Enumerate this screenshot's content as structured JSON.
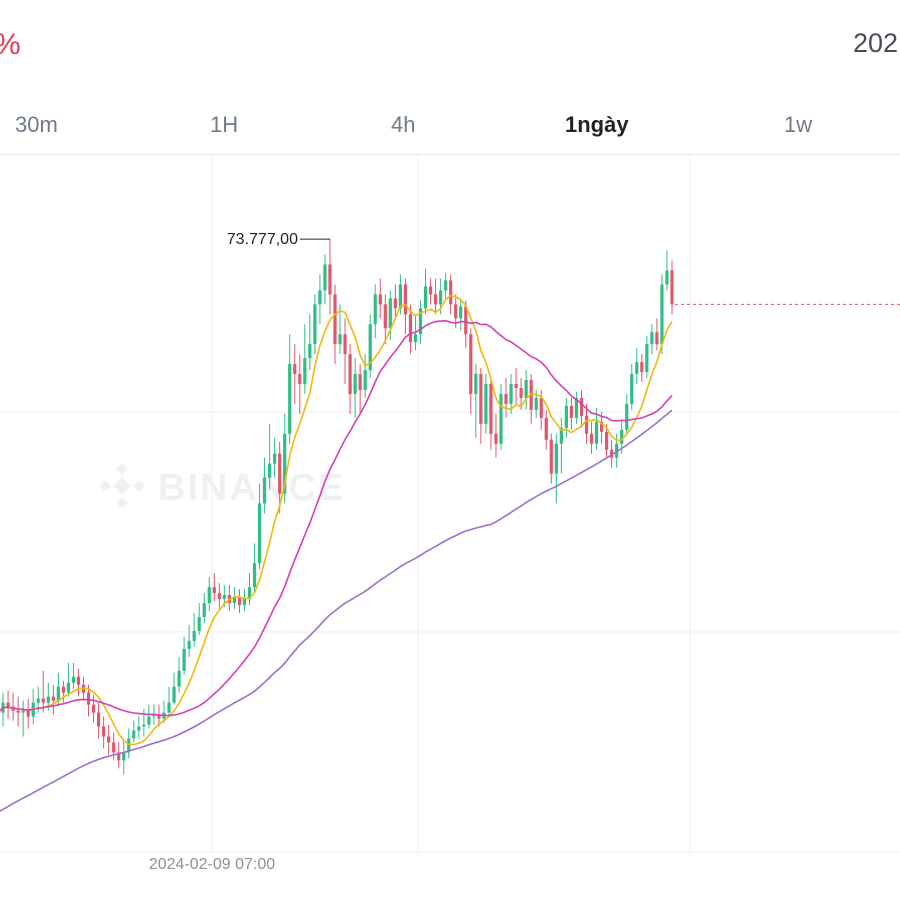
{
  "header": {
    "left_fragment": "%",
    "right_fragment": "202"
  },
  "tabs": [
    {
      "label": "30m",
      "active": false
    },
    {
      "label": "1H",
      "active": false
    },
    {
      "label": "4h",
      "active": false
    },
    {
      "label": "1ngày",
      "active": true
    },
    {
      "label": "1w",
      "active": false
    }
  ],
  "watermark": "BINANCE",
  "colors": {
    "up": "#2ebd85",
    "down": "#e0566a",
    "ma_short": "#f0b90b",
    "ma_mid": "#d63fb5",
    "ma_long": "#9a6fd0",
    "last_price_line": "#e0566a",
    "grid": "#eef0f2"
  },
  "chart_data": {
    "type": "candlestick",
    "interval": "1ngày",
    "max_label": "73.777,00",
    "x_tick_labels": [
      "2024-02-09 07:00"
    ],
    "ylim": [
      43000,
      78000
    ],
    "grid": true,
    "series": [
      {
        "name": "",
        "type": "candlestick",
        "values": [
          [
            50400,
            50000,
            51200,
            49400
          ],
          [
            50000,
            50500,
            51000,
            49300
          ],
          [
            50500,
            50300,
            51100,
            49700
          ],
          [
            50300,
            50100,
            51000,
            49600
          ],
          [
            50100,
            50000,
            50800,
            49300
          ],
          [
            50000,
            50100,
            50600,
            48800
          ],
          [
            50100,
            49800,
            50700,
            49200
          ],
          [
            49800,
            50500,
            51200,
            49400
          ],
          [
            50500,
            50700,
            51300,
            50000
          ],
          [
            50700,
            50500,
            52100,
            50000
          ],
          [
            50500,
            50800,
            51500,
            50100
          ],
          [
            50800,
            50600,
            51400,
            49900
          ],
          [
            50600,
            51300,
            52000,
            50300
          ],
          [
            51300,
            51000,
            51600,
            50500
          ],
          [
            51000,
            51500,
            52500,
            50800
          ],
          [
            51500,
            51800,
            52500,
            51200
          ],
          [
            51800,
            51400,
            52200,
            50800
          ],
          [
            51400,
            51000,
            51800,
            50600
          ],
          [
            51000,
            50400,
            51400,
            49800
          ],
          [
            50400,
            50000,
            50900,
            49500
          ],
          [
            50000,
            49300,
            50500,
            48700
          ],
          [
            49300,
            48800,
            49800,
            48200
          ],
          [
            48800,
            48500,
            49400,
            47900
          ],
          [
            48500,
            48000,
            49000,
            47600
          ],
          [
            48000,
            47600,
            48500,
            47200
          ],
          [
            47600,
            48000,
            48600,
            46900
          ],
          [
            48000,
            48700,
            49200,
            47700
          ],
          [
            48700,
            49100,
            49600,
            48500
          ],
          [
            49100,
            49300,
            49800,
            48700
          ],
          [
            49300,
            49400,
            50200,
            48800
          ],
          [
            49400,
            49800,
            50400,
            49200
          ],
          [
            49800,
            49900,
            50400,
            49400
          ],
          [
            49900,
            49700,
            50400,
            49300
          ],
          [
            49700,
            50000,
            50600,
            49500
          ],
          [
            50000,
            50500,
            51300,
            49800
          ],
          [
            50500,
            51300,
            52000,
            50400
          ],
          [
            51300,
            52100,
            52800,
            51000
          ],
          [
            52100,
            53200,
            53800,
            51900
          ],
          [
            53200,
            53600,
            54400,
            52800
          ],
          [
            53600,
            54100,
            55000,
            53300
          ],
          [
            54100,
            54800,
            55500,
            53900
          ],
          [
            54800,
            55500,
            56000,
            54500
          ],
          [
            55500,
            56300,
            56800,
            55100
          ],
          [
            56300,
            56000,
            57000,
            55600
          ],
          [
            56000,
            55700,
            56500,
            55200
          ],
          [
            55700,
            55900,
            56400,
            55300
          ],
          [
            55900,
            55500,
            56400,
            55100
          ],
          [
            55500,
            55800,
            56300,
            55200
          ],
          [
            55800,
            55400,
            56200,
            55000
          ],
          [
            55400,
            55700,
            56200,
            55100
          ],
          [
            55700,
            56300,
            57000,
            55400
          ],
          [
            56300,
            57500,
            58500,
            56000
          ],
          [
            57500,
            60500,
            61500,
            57200
          ],
          [
            60500,
            61800,
            62800,
            60000
          ],
          [
            61800,
            62500,
            64500,
            61200
          ],
          [
            62500,
            63000,
            63800,
            61800
          ],
          [
            63000,
            61000,
            63600,
            60000
          ],
          [
            61000,
            64000,
            65000,
            60500
          ],
          [
            64000,
            67500,
            69000,
            63500
          ],
          [
            67500,
            67000,
            68500,
            65500
          ],
          [
            67000,
            66500,
            68000,
            65000
          ],
          [
            66500,
            67800,
            69500,
            66000
          ],
          [
            67800,
            68500,
            70000,
            67200
          ],
          [
            68500,
            70500,
            71000,
            68000
          ],
          [
            70500,
            71200,
            72000,
            69500
          ],
          [
            71200,
            72500,
            73000,
            70500
          ],
          [
            72500,
            71000,
            73777,
            70000
          ],
          [
            71000,
            68500,
            71500,
            67500
          ],
          [
            68500,
            69000,
            70500,
            68000
          ],
          [
            69000,
            68000,
            69800,
            66500
          ],
          [
            68000,
            66000,
            68500,
            65000
          ],
          [
            66000,
            67000,
            67800,
            64800
          ],
          [
            67000,
            66200,
            67500,
            65000
          ],
          [
            66200,
            67200,
            68000,
            65800
          ],
          [
            67200,
            69500,
            70000,
            66800
          ],
          [
            69500,
            71000,
            71500,
            68800
          ],
          [
            71000,
            70500,
            71800,
            69800
          ],
          [
            70500,
            69300,
            71000,
            68500
          ],
          [
            69300,
            70800,
            71200,
            68700
          ],
          [
            70800,
            70300,
            71500,
            69800
          ],
          [
            70300,
            71500,
            72000,
            70000
          ],
          [
            71500,
            70000,
            71800,
            69000
          ],
          [
            70000,
            68600,
            70500,
            68000
          ],
          [
            68600,
            69000,
            70000,
            68200
          ],
          [
            69000,
            70300,
            70700,
            68500
          ],
          [
            70300,
            71400,
            72300,
            70000
          ],
          [
            71400,
            71000,
            71800,
            70500
          ],
          [
            71000,
            70500,
            71800,
            70000
          ],
          [
            70500,
            71200,
            71800,
            70000
          ],
          [
            71200,
            71700,
            72100,
            70800
          ],
          [
            71700,
            70500,
            72000,
            70000
          ],
          [
            70500,
            69800,
            71000,
            69300
          ],
          [
            69800,
            70400,
            70800,
            69200
          ],
          [
            70400,
            69000,
            70700,
            68300
          ],
          [
            69000,
            66000,
            69300,
            65000
          ],
          [
            66000,
            67000,
            67500,
            63800
          ],
          [
            67000,
            64500,
            67300,
            63500
          ],
          [
            64500,
            66500,
            67000,
            64000
          ],
          [
            66500,
            64000,
            66800,
            63200
          ],
          [
            64000,
            63500,
            65000,
            62800
          ],
          [
            63500,
            66000,
            66500,
            63200
          ],
          [
            66000,
            65500,
            66800,
            64800
          ],
          [
            65500,
            66500,
            67000,
            65000
          ],
          [
            66500,
            66300,
            67300,
            65500
          ],
          [
            66300,
            65800,
            66800,
            65200
          ],
          [
            65800,
            66700,
            67200,
            65200
          ],
          [
            66700,
            65200,
            67000,
            64500
          ],
          [
            65200,
            65800,
            66200,
            64800
          ],
          [
            65800,
            64800,
            66200,
            64200
          ],
          [
            64800,
            63700,
            65200,
            63200
          ],
          [
            63700,
            62000,
            64000,
            61500
          ],
          [
            62000,
            63500,
            64000,
            60500
          ],
          [
            63500,
            64300,
            64800,
            62000
          ],
          [
            64300,
            65400,
            65800,
            63800
          ],
          [
            65400,
            64800,
            65800,
            64200
          ],
          [
            64800,
            65800,
            66100,
            64500
          ],
          [
            65800,
            64900,
            66200,
            64300
          ],
          [
            64900,
            64000,
            65500,
            63500
          ],
          [
            64000,
            63500,
            64600,
            63000
          ],
          [
            63500,
            64600,
            65300,
            63200
          ],
          [
            64600,
            64100,
            65100,
            63500
          ],
          [
            64100,
            63200,
            64500,
            62800
          ],
          [
            63200,
            62800,
            63700,
            62300
          ],
          [
            62800,
            63500,
            64000,
            62300
          ],
          [
            63500,
            64200,
            64700,
            63000
          ],
          [
            64200,
            65500,
            66000,
            64000
          ],
          [
            65500,
            67000,
            67500,
            65200
          ],
          [
            67000,
            67600,
            68300,
            66500
          ],
          [
            67600,
            67100,
            68000,
            66600
          ],
          [
            67100,
            68500,
            68900,
            66800
          ],
          [
            68500,
            69100,
            69500,
            68000
          ],
          [
            69100,
            68500,
            69800,
            68200
          ],
          [
            68500,
            71500,
            72000,
            68000
          ],
          [
            71500,
            72200,
            73200,
            71200
          ],
          [
            72200,
            70500,
            72700,
            70000
          ]
        ]
      },
      {
        "name": "",
        "type": "line",
        "period": 7
      },
      {
        "name": "",
        "type": "line",
        "period": 25
      },
      {
        "name": "",
        "type": "line",
        "period": 99
      }
    ],
    "last_price": 70500
  }
}
